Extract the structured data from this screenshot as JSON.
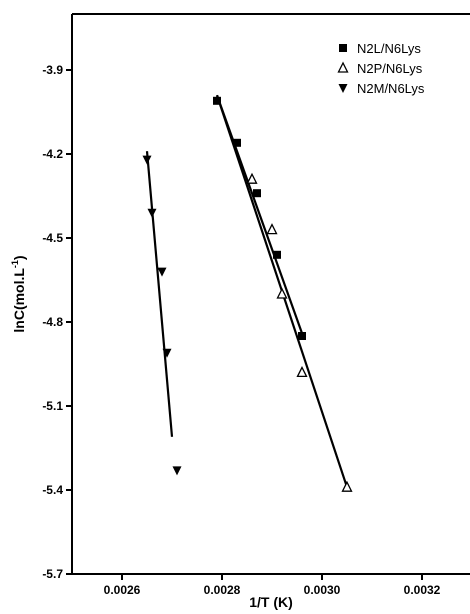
{
  "chart_data": {
    "type": "scatter",
    "xlabel": "1/T (K)",
    "ylabel_main": "lnC(mol.L",
    "ylabel_sup": "-1",
    "ylabel_close": ")",
    "xlim": [
      0.0025,
      0.0033
    ],
    "ylim": [
      -5.7,
      -3.7
    ],
    "x_ticks": [
      0.0026,
      0.0028,
      0.003,
      0.0032
    ],
    "x_tick_labels": [
      "0.0026",
      "0.0028",
      "0.0030",
      "0.0032"
    ],
    "y_ticks": [
      -3.9,
      -4.2,
      -4.5,
      -4.8,
      -5.1,
      -5.4,
      -5.7
    ],
    "y_tick_labels": [
      "-3.9",
      "-4.2",
      "-4.5",
      "-4.8",
      "-5.1",
      "-5.4",
      "-5.7"
    ],
    "legend_position": "top-right",
    "series": [
      {
        "name": "N2L/N6Lys",
        "marker": "square",
        "x": [
          0.00279,
          0.00283,
          0.00287,
          0.00291,
          0.00296
        ],
        "y": [
          -4.01,
          -4.16,
          -4.34,
          -4.56,
          -4.85
        ],
        "fit": [
          [
            0.00279,
            -3.99
          ],
          [
            0.00296,
            -4.84
          ]
        ]
      },
      {
        "name": "N2P/N6Lys",
        "marker": "triangle-up",
        "x": [
          0.00286,
          0.0029,
          0.00292,
          0.00296,
          0.00305
        ],
        "y": [
          -4.29,
          -4.47,
          -4.7,
          -4.98,
          -5.39
        ],
        "fit": [
          [
            0.00279,
            -3.99
          ],
          [
            0.00305,
            -5.39
          ]
        ]
      },
      {
        "name": "N2M/N6Lys",
        "marker": "triangle-down",
        "x": [
          0.00265,
          0.00266,
          0.00268,
          0.00269,
          0.00271
        ],
        "y": [
          -4.22,
          -4.41,
          -4.62,
          -4.91,
          -5.33
        ],
        "fit": [
          [
            0.00265,
            -4.19
          ],
          [
            0.0027,
            -5.21
          ]
        ]
      }
    ]
  }
}
